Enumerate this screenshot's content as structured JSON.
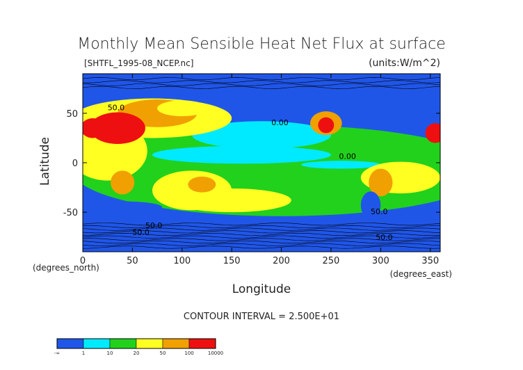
{
  "chart_data": {
    "type": "heatmap",
    "title": "Monthly Mean Sensible Heat Net Flux at surface",
    "file_label": "[SHTFL_1995-08_NCEP.nc]",
    "units_label": "(units:W/m^2)",
    "xlabel": "Longitude",
    "ylabel": "Latitude",
    "x_unit_label": "(degrees_east)",
    "y_unit_label": "(degrees_north)",
    "xlim": [
      0,
      360
    ],
    "ylim": [
      -90,
      90
    ],
    "x_ticks": [
      0,
      50,
      100,
      150,
      200,
      250,
      300,
      350
    ],
    "y_ticks": [
      -50,
      0,
      50
    ],
    "contour_interval_label": "CONTOUR INTERVAL = 2.500E+01",
    "contour_labels": [
      {
        "text": "50.0",
        "x": 25,
        "y": 53
      },
      {
        "text": "0.00",
        "x": 190,
        "y": 38
      },
      {
        "text": "0.00",
        "x": 258,
        "y": 4
      },
      {
        "text": "50.0",
        "x": 290,
        "y": -52
      },
      {
        "text": "50.0",
        "x": 63,
        "y": -66
      },
      {
        "text": "50.0",
        "x": 50,
        "y": -73
      },
      {
        "text": "50.0",
        "x": 295,
        "y": -78
      }
    ],
    "colorbar": {
      "boundaries": [
        "-∞",
        "1",
        "10",
        "20",
        "50",
        "100",
        "10000"
      ],
      "colors": [
        "#2056e8",
        "#00eaff",
        "#22d11c",
        "#ffff22",
        "#f0a000",
        "#ee1010"
      ]
    }
  }
}
